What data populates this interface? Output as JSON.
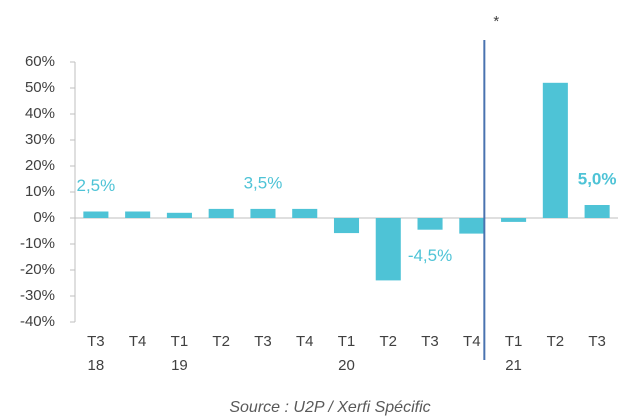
{
  "chart_data": {
    "type": "bar",
    "categories": [
      "T3 18",
      "T4",
      "T1 19",
      "T2",
      "T3",
      "T4",
      "T1 20",
      "T2",
      "T3",
      "T4",
      "T1 21",
      "T2",
      "T3"
    ],
    "values": [
      2.5,
      2.5,
      2.0,
      3.5,
      3.5,
      3.5,
      -5.8,
      -24,
      -4.5,
      -6,
      -1.5,
      52,
      5.0
    ],
    "value_labels": [
      "2,5%",
      null,
      null,
      null,
      "3,5%",
      null,
      null,
      null,
      "-4,5%",
      null,
      null,
      null,
      "5,0%"
    ],
    "color": "#4ec3d6",
    "ylim": [
      -40,
      60
    ],
    "yticks": [
      {
        "value": -40,
        "label": "-40%"
      },
      {
        "value": -30,
        "label": "-30%"
      },
      {
        "value": -20,
        "label": "-20%"
      },
      {
        "value": -10,
        "label": "-10%"
      },
      {
        "value": 0,
        "label": "0%"
      },
      {
        "value": 10,
        "label": "10%"
      },
      {
        "value": 20,
        "label": "20%"
      },
      {
        "value": 30,
        "label": "30%"
      },
      {
        "value": 40,
        "label": "40%"
      },
      {
        "value": 50,
        "label": "50%"
      },
      {
        "value": 60,
        "label": "60%"
      }
    ],
    "annotation": "*",
    "source": "Source : U2P / Xerfi Spécific"
  }
}
